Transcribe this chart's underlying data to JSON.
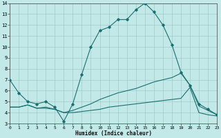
{
  "xlabel": "Humidex (Indice chaleur)",
  "bg_color": "#c2e8e8",
  "grid_color": "#a0cccc",
  "line_color": "#1a7070",
  "xlim": [
    0,
    23
  ],
  "ylim": [
    3,
    14
  ],
  "xticks": [
    0,
    1,
    2,
    3,
    4,
    5,
    6,
    7,
    8,
    9,
    10,
    11,
    12,
    13,
    14,
    15,
    16,
    17,
    18,
    19,
    20,
    21,
    22,
    23
  ],
  "yticks": [
    3,
    4,
    5,
    6,
    7,
    8,
    9,
    10,
    11,
    12,
    13,
    14
  ],
  "line1_x": [
    0,
    1,
    2,
    3,
    4,
    5,
    6,
    7,
    8,
    9,
    10,
    11,
    12,
    13,
    14,
    15,
    16,
    17,
    18,
    19,
    20,
    21,
    22,
    23
  ],
  "line1_y": [
    7.0,
    5.8,
    5.0,
    4.8,
    5.0,
    4.5,
    3.2,
    4.8,
    7.5,
    10.0,
    11.5,
    11.8,
    12.5,
    12.5,
    13.4,
    14.0,
    13.2,
    12.0,
    10.2,
    7.7,
    6.5,
    4.8,
    4.3,
    3.8
  ],
  "line2_x": [
    0,
    1,
    2,
    3,
    4,
    5,
    6,
    7,
    8,
    9,
    10,
    11,
    12,
    13,
    14,
    15,
    16,
    17,
    18,
    19,
    20,
    21,
    22,
    23
  ],
  "line2_y": [
    4.5,
    4.5,
    4.7,
    4.4,
    4.4,
    4.3,
    4.0,
    4.0,
    4.1,
    4.2,
    4.3,
    4.5,
    4.6,
    4.7,
    4.8,
    4.9,
    5.0,
    5.1,
    5.2,
    5.3,
    6.3,
    4.0,
    3.8,
    3.7
  ],
  "line3_x": [
    0,
    1,
    2,
    3,
    4,
    5,
    6,
    7,
    8,
    9,
    10,
    11,
    12,
    13,
    14,
    15,
    16,
    17,
    18,
    19,
    20,
    21,
    22,
    23
  ],
  "line3_y": [
    4.5,
    4.5,
    4.7,
    4.4,
    4.5,
    4.3,
    4.0,
    4.2,
    4.5,
    4.8,
    5.2,
    5.5,
    5.8,
    6.0,
    6.2,
    6.5,
    6.8,
    7.0,
    7.2,
    7.6,
    6.5,
    4.6,
    4.2,
    3.8
  ]
}
